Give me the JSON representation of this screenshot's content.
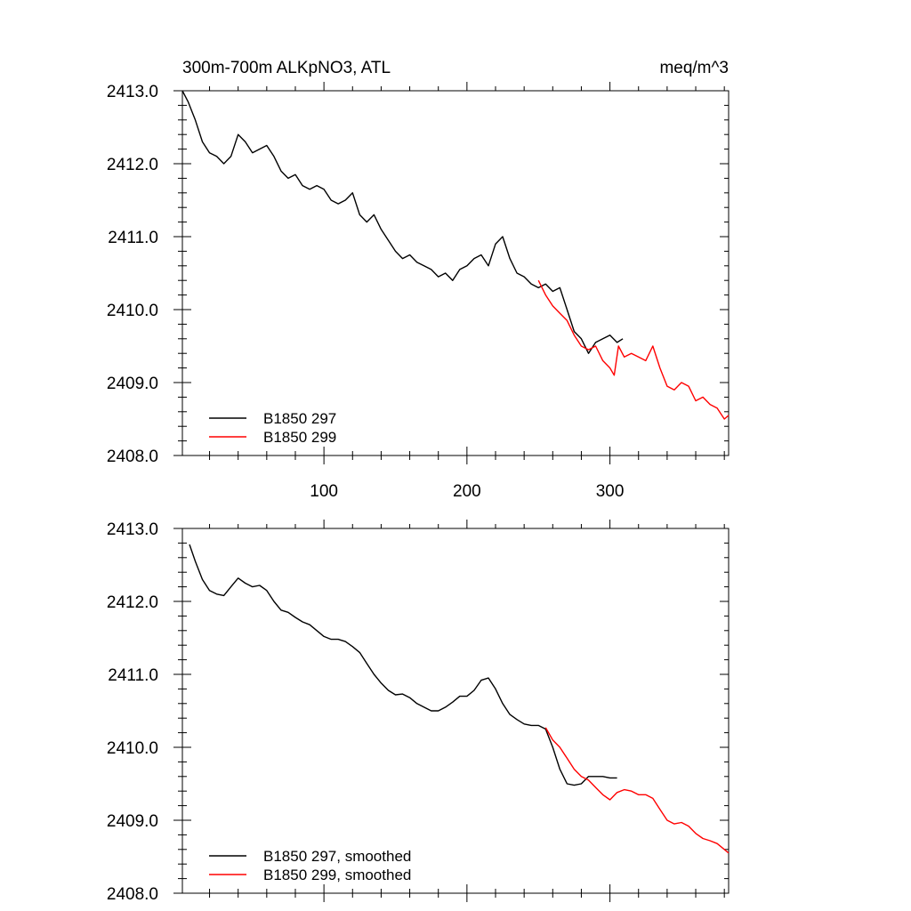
{
  "chart_data": [
    {
      "type": "line",
      "title": "300m-700m ALKpNO3, ATL",
      "units": "meq/m^3",
      "xlim": [
        1,
        383
      ],
      "ylim": [
        2408.0,
        2413.0
      ],
      "xticks": [
        100,
        200,
        300
      ],
      "xtick_labels": [
        "100",
        "200",
        "300"
      ],
      "yticks": [
        2408.0,
        2409.0,
        2410.0,
        2411.0,
        2412.0,
        2413.0
      ],
      "ytick_labels": [
        "2408.0",
        "2409.0",
        "2410.0",
        "2411.0",
        "2412.0",
        "2413.0"
      ],
      "legend_position": "bottom-left",
      "series": [
        {
          "name": "B1850 297",
          "color": "#000000",
          "x": [
            1,
            5,
            10,
            15,
            20,
            25,
            30,
            35,
            40,
            45,
            50,
            55,
            60,
            65,
            70,
            75,
            80,
            85,
            90,
            95,
            100,
            105,
            110,
            115,
            120,
            125,
            130,
            135,
            140,
            145,
            150,
            155,
            160,
            165,
            170,
            175,
            180,
            185,
            190,
            195,
            200,
            205,
            210,
            215,
            220,
            225,
            230,
            235,
            240,
            245,
            250,
            255,
            260,
            265,
            270,
            275,
            280,
            285,
            290,
            295,
            300,
            305,
            309
          ],
          "values": [
            2413.0,
            2412.85,
            2412.6,
            2412.3,
            2412.15,
            2412.1,
            2412.0,
            2412.1,
            2412.4,
            2412.3,
            2412.15,
            2412.2,
            2412.25,
            2412.1,
            2411.9,
            2411.8,
            2411.85,
            2411.7,
            2411.65,
            2411.7,
            2411.65,
            2411.5,
            2411.45,
            2411.5,
            2411.6,
            2411.3,
            2411.2,
            2411.3,
            2411.1,
            2410.95,
            2410.8,
            2410.7,
            2410.75,
            2410.65,
            2410.6,
            2410.55,
            2410.45,
            2410.5,
            2410.4,
            2410.55,
            2410.6,
            2410.7,
            2410.75,
            2410.6,
            2410.9,
            2411.0,
            2410.7,
            2410.5,
            2410.45,
            2410.35,
            2410.3,
            2410.35,
            2410.25,
            2410.3,
            2410.0,
            2409.7,
            2409.6,
            2409.4,
            2409.55,
            2409.6,
            2409.65,
            2409.55,
            2409.6
          ]
        },
        {
          "name": "B1850 299",
          "color": "#ff0000",
          "x": [
            250,
            255,
            260,
            265,
            270,
            275,
            280,
            285,
            290,
            295,
            300,
            303,
            306,
            310,
            315,
            320,
            325,
            330,
            335,
            340,
            345,
            350,
            355,
            360,
            365,
            370,
            375,
            380,
            383
          ],
          "values": [
            2410.4,
            2410.2,
            2410.05,
            2409.95,
            2409.85,
            2409.65,
            2409.5,
            2409.45,
            2409.5,
            2409.3,
            2409.2,
            2409.1,
            2409.5,
            2409.35,
            2409.4,
            2409.35,
            2409.3,
            2409.5,
            2409.2,
            2408.95,
            2408.9,
            2409.0,
            2408.95,
            2408.75,
            2408.8,
            2408.7,
            2408.65,
            2408.5,
            2408.55
          ]
        }
      ]
    },
    {
      "type": "line",
      "title": "",
      "xlim": [
        1,
        383
      ],
      "ylim": [
        2408.0,
        2413.0
      ],
      "xticks": [
        100,
        200,
        300
      ],
      "yticks": [
        2408.0,
        2409.0,
        2410.0,
        2411.0,
        2412.0,
        2413.0
      ],
      "ytick_labels": [
        "2408.0",
        "2409.0",
        "2410.0",
        "2411.0",
        "2412.0",
        "2413.0"
      ],
      "legend_position": "bottom-left",
      "series": [
        {
          "name": "B1850 297, smoothed",
          "color": "#000000",
          "x": [
            6,
            10,
            15,
            20,
            25,
            30,
            35,
            40,
            45,
            50,
            55,
            60,
            65,
            70,
            75,
            80,
            85,
            90,
            95,
            100,
            105,
            110,
            115,
            120,
            125,
            130,
            135,
            140,
            145,
            150,
            155,
            160,
            165,
            170,
            175,
            180,
            185,
            190,
            195,
            200,
            205,
            210,
            215,
            220,
            225,
            230,
            235,
            240,
            245,
            250,
            255,
            260,
            265,
            270,
            275,
            280,
            285,
            290,
            295,
            300,
            305
          ],
          "values": [
            2412.78,
            2412.55,
            2412.3,
            2412.15,
            2412.1,
            2412.08,
            2412.2,
            2412.32,
            2412.25,
            2412.2,
            2412.22,
            2412.15,
            2412.0,
            2411.88,
            2411.85,
            2411.78,
            2411.72,
            2411.68,
            2411.6,
            2411.52,
            2411.48,
            2411.48,
            2411.45,
            2411.38,
            2411.3,
            2411.15,
            2411.0,
            2410.88,
            2410.78,
            2410.72,
            2410.73,
            2410.68,
            2410.6,
            2410.55,
            2410.5,
            2410.5,
            2410.55,
            2410.62,
            2410.7,
            2410.7,
            2410.78,
            2410.92,
            2410.95,
            2410.8,
            2410.6,
            2410.45,
            2410.38,
            2410.32,
            2410.3,
            2410.3,
            2410.25,
            2410.0,
            2409.7,
            2409.5,
            2409.48,
            2409.5,
            2409.6,
            2409.6,
            2409.6,
            2409.58,
            2409.58
          ]
        },
        {
          "name": "B1850 299, smoothed",
          "color": "#ff0000",
          "x": [
            255,
            260,
            265,
            270,
            275,
            280,
            285,
            290,
            295,
            300,
            305,
            310,
            315,
            320,
            325,
            330,
            335,
            340,
            345,
            350,
            355,
            360,
            365,
            370,
            375,
            380,
            383
          ],
          "values": [
            2410.27,
            2410.1,
            2410.0,
            2409.85,
            2409.7,
            2409.6,
            2409.55,
            2409.45,
            2409.35,
            2409.28,
            2409.38,
            2409.42,
            2409.4,
            2409.35,
            2409.35,
            2409.3,
            2409.15,
            2409.0,
            2408.95,
            2408.97,
            2408.92,
            2408.82,
            2408.75,
            2408.72,
            2408.68,
            2408.6,
            2408.55
          ]
        }
      ]
    }
  ]
}
